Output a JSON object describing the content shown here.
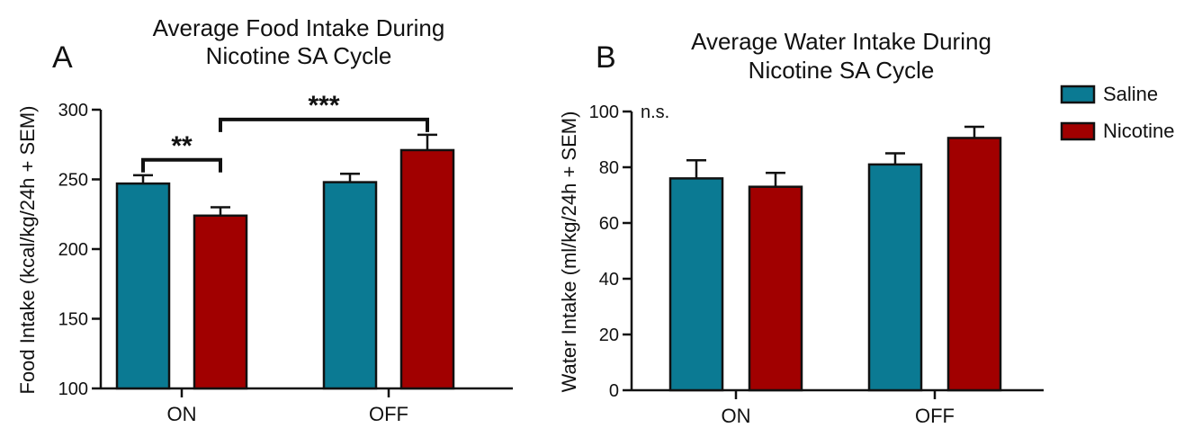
{
  "chart_data": [
    {
      "panel_label": "A",
      "type": "bar",
      "title": "Average Food Intake During Nicotine SA Cycle",
      "title_lines": [
        "Average Food Intake During",
        "Nicotine SA Cycle"
      ],
      "ylabel": "Food Intake (kcal/kg/24h + SEM)",
      "xlabel": "",
      "categories": [
        "ON",
        "OFF"
      ],
      "ylim": [
        100,
        300
      ],
      "yticks": [
        100,
        150,
        200,
        250,
        300
      ],
      "series": [
        {
          "name": "Saline",
          "values": [
            247,
            248
          ],
          "errors": [
            6,
            6
          ]
        },
        {
          "name": "Nicotine",
          "values": [
            224,
            271
          ],
          "errors": [
            6,
            11
          ]
        }
      ],
      "annotations": [
        {
          "text": "**",
          "from": [
            "ON",
            "Saline"
          ],
          "to": [
            "ON",
            "Nicotine"
          ],
          "level": 264
        },
        {
          "text": "***",
          "from": [
            "ON",
            "Nicotine"
          ],
          "to": [
            "OFF",
            "Nicotine"
          ],
          "level": 293
        }
      ],
      "grid": false
    },
    {
      "panel_label": "B",
      "type": "bar",
      "title": "Average Water Intake During Nicotine SA Cycle",
      "title_lines": [
        "Average Water Intake During",
        "Nicotine SA Cycle"
      ],
      "ylabel": "Water Intake (ml/kg/24h + SEM)",
      "xlabel": "",
      "categories": [
        "ON",
        "OFF"
      ],
      "ylim": [
        0,
        100
      ],
      "yticks": [
        0,
        20,
        40,
        60,
        80,
        100
      ],
      "series": [
        {
          "name": "Saline",
          "values": [
            76,
            81
          ],
          "errors": [
            6.5,
            4
          ]
        },
        {
          "name": "Nicotine",
          "values": [
            73,
            90.5
          ],
          "errors": [
            5,
            4
          ]
        }
      ],
      "annotation_text": "n.s.",
      "grid": false
    }
  ],
  "legend": {
    "position": "right",
    "items": [
      {
        "name": "Saline",
        "color": "#0b7a93"
      },
      {
        "name": "Nicotine",
        "color": "#a10000"
      }
    ]
  },
  "colors": {
    "saline": "#0b7a93",
    "nicotine": "#a10000",
    "axis": "#111111"
  }
}
